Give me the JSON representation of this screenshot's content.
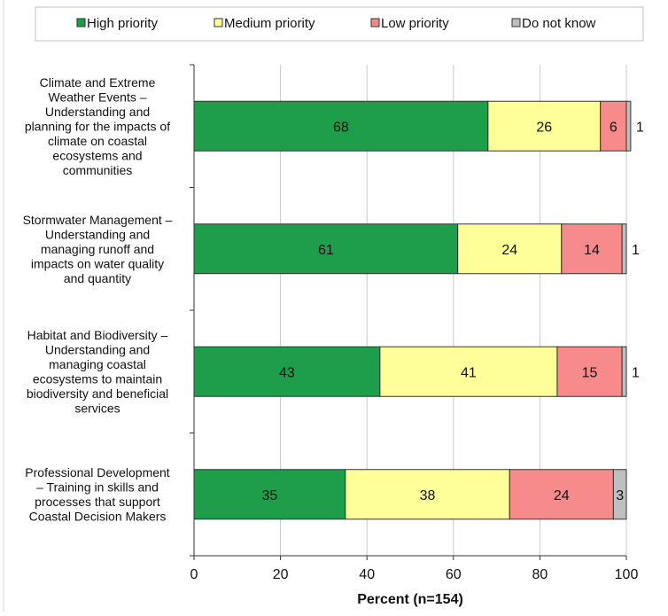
{
  "chart_data": {
    "type": "bar",
    "orientation": "horizontal",
    "stacked": true,
    "categories": [
      [
        "Climate and Extreme",
        "Weather Events –",
        "Understanding and",
        "planning for the impacts of",
        "climate on coastal",
        "ecosystems and",
        "communities"
      ],
      [
        "Stormwater Management –",
        "Understanding and",
        "managing runoff and",
        "impacts on water quality",
        "and quantity"
      ],
      [
        "Habitat and Biodiversity –",
        "Understanding and",
        "managing coastal",
        "ecosystems to maintain",
        "biodiversity and beneficial",
        "services"
      ],
      [
        "Professional Development",
        "– Training in skills and",
        "processes that support",
        "Coastal Decision Makers"
      ]
    ],
    "series": [
      {
        "name": "High priority",
        "color": "#1e9e4a",
        "values": [
          68,
          61,
          43,
          35
        ]
      },
      {
        "name": "Medium priority",
        "color": "#ffff99",
        "values": [
          26,
          24,
          41,
          38
        ]
      },
      {
        "name": "Low priority",
        "color": "#f78a8a",
        "values": [
          6,
          14,
          15,
          24
        ]
      },
      {
        "name": "Do not know",
        "color": "#bfbfbf",
        "values": [
          1,
          1,
          1,
          3
        ]
      }
    ],
    "xlabel": "Percent (n=154)",
    "xlim": [
      0,
      100
    ],
    "xticks": [
      0,
      20,
      40,
      60,
      80,
      100
    ],
    "grid": "vertical",
    "legend": "top"
  }
}
